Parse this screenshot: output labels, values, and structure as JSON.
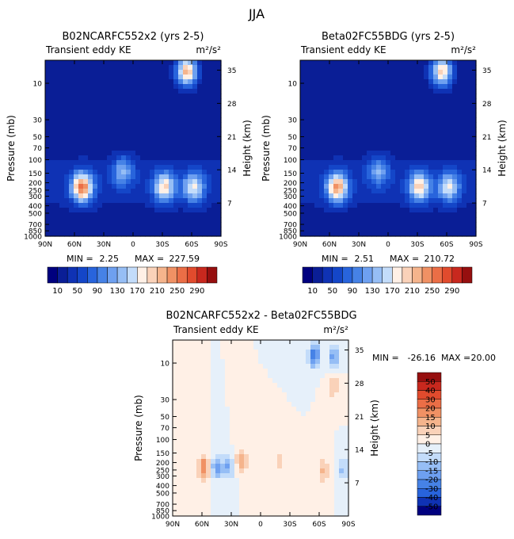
{
  "page_title": "JJA",
  "chart_data": [
    {
      "type": "heatmap",
      "title": "B02NCARFC552x2 (yrs 2-5)",
      "subtitle_left": "Transient eddy KE",
      "subtitle_right": "m²/s²",
      "ylabel": "Pressure (mb)",
      "ylabel_right": "Height (km)",
      "x_ticks": [
        "90N",
        "60N",
        "30N",
        "0",
        "30S",
        "60S",
        "90S"
      ],
      "y_ticks": [
        "10",
        "30",
        "50",
        "70",
        "100",
        "150",
        "200",
        "250",
        "300",
        "400",
        "500",
        "700",
        "850",
        "1000"
      ],
      "y_ticks_right": [
        "35",
        "28",
        "21",
        "14",
        "7"
      ],
      "stats": {
        "min_label": "MIN =",
        "min": "2.25",
        "max_label": "MAX =",
        "max": "227.59"
      },
      "colorbar_labels": [
        "10",
        "50",
        "90",
        "130",
        "170",
        "210",
        "250",
        "290"
      ],
      "colors": [
        "#00007f",
        "#0a1e96",
        "#0f32b4",
        "#1446c8",
        "#2864dc",
        "#4682e6",
        "#6ea0f0",
        "#96bef5",
        "#c3dcfa",
        "#fff0e6",
        "#fad2b9",
        "#f5b48c",
        "#f09164",
        "#eb6e46",
        "#e14b2d",
        "#c8281e",
        "#960f0f"
      ],
      "features": [
        {
          "lat": 52,
          "p": 230,
          "peak": 227
        },
        {
          "lat": -32,
          "p": 230,
          "peak": 170
        },
        {
          "lat": -62,
          "p": 230,
          "peak": 150
        },
        {
          "lat": 10,
          "p": 140,
          "peak": 110
        },
        {
          "lat": -55,
          "p": 7,
          "peak": 215
        }
      ]
    },
    {
      "type": "heatmap",
      "title": "Beta02FC55BDG (yrs 2-5)",
      "subtitle_left": "Transient eddy KE",
      "subtitle_right": "m²/s²",
      "ylabel": "Pressure (mb)",
      "ylabel_right": "Height (km)",
      "x_ticks": [
        "90N",
        "60N",
        "30N",
        "0",
        "30S",
        "60S",
        "90S"
      ],
      "y_ticks": [
        "10",
        "30",
        "50",
        "70",
        "100",
        "150",
        "200",
        "250",
        "300",
        "400",
        "500",
        "700",
        "850",
        "1000"
      ],
      "y_ticks_right": [
        "35",
        "28",
        "21",
        "14",
        "7"
      ],
      "stats": {
        "min_label": "MIN =",
        "min": "2.51",
        "max_label": "MAX =",
        "max": "210.72"
      },
      "colorbar_labels": [
        "10",
        "50",
        "90",
        "130",
        "170",
        "210",
        "250",
        "290"
      ],
      "colors": [
        "#00007f",
        "#0a1e96",
        "#0f32b4",
        "#1446c8",
        "#2864dc",
        "#4682e6",
        "#6ea0f0",
        "#96bef5",
        "#c3dcfa",
        "#fff0e6",
        "#fad2b9",
        "#f5b48c",
        "#f09164",
        "#eb6e46",
        "#e14b2d",
        "#c8281e",
        "#960f0f"
      ],
      "features": [
        {
          "lat": 52,
          "p": 230,
          "peak": 210
        },
        {
          "lat": -32,
          "p": 230,
          "peak": 175
        },
        {
          "lat": -62,
          "p": 230,
          "peak": 145
        },
        {
          "lat": 10,
          "p": 140,
          "peak": 105
        },
        {
          "lat": -55,
          "p": 7,
          "peak": 200
        }
      ]
    },
    {
      "type": "heatmap",
      "title": "B02NCARFC552x2 - Beta02FC55BDG",
      "subtitle_left": "Transient eddy KE",
      "subtitle_right": "m²/s²",
      "ylabel": "Pressure (mb)",
      "ylabel_right": "Height (km)",
      "x_ticks": [
        "90N",
        "60N",
        "30N",
        "0",
        "30S",
        "60S",
        "90S"
      ],
      "y_ticks": [
        "10",
        "30",
        "50",
        "70",
        "100",
        "150",
        "200",
        "250",
        "300",
        "400",
        "500",
        "700",
        "850",
        "1000"
      ],
      "y_ticks_right": [
        "35",
        "28",
        "21",
        "14",
        "7"
      ],
      "stats": {
        "min_label": "MIN =",
        "min": "-26.16",
        "max_label": "MAX =",
        "max": "20.00"
      },
      "colorbar_labels": [
        "50",
        "40",
        "30",
        "20",
        "15",
        "10",
        "5",
        "0",
        "-5",
        "-10",
        "-15",
        "-20",
        "-30",
        "-40",
        "-50"
      ],
      "colors": [
        "#960f0f",
        "#c8281e",
        "#e14b2d",
        "#eb6e46",
        "#f09164",
        "#f5b48c",
        "#fad2b9",
        "#fff0e6",
        "#e6f0fa",
        "#c3dcfa",
        "#96bef5",
        "#6ea0f0",
        "#4682e6",
        "#2864dc",
        "#0f32b4",
        "#00007f"
      ],
      "features": [
        {
          "lat": 58,
          "p": 230,
          "peak": 20
        },
        {
          "lat": 45,
          "p": 230,
          "peak": -18
        },
        {
          "lat": 33,
          "p": 230,
          "peak": -15
        },
        {
          "lat": 20,
          "p": 190,
          "peak": 14
        },
        {
          "lat": -20,
          "p": 200,
          "peak": 8
        },
        {
          "lat": -55,
          "p": 8,
          "peak": -26
        },
        {
          "lat": -75,
          "p": 8,
          "peak": -18
        },
        {
          "lat": -75,
          "p": 20,
          "peak": 10
        },
        {
          "lat": -65,
          "p": 260,
          "peak": 12
        },
        {
          "lat": -85,
          "p": 250,
          "peak": -12
        }
      ]
    }
  ]
}
